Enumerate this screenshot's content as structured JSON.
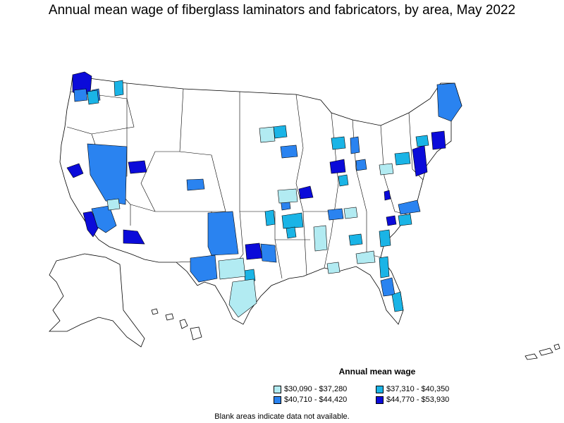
{
  "title": "Annual mean wage of fiberglass laminators and fabricators, by area, May 2022",
  "legend": {
    "title": "Annual mean wage",
    "items": [
      {
        "label": "$30,090 - $37,280",
        "color": "#b2ebf2"
      },
      {
        "label": "$37,310 - $40,350",
        "color": "#1ab4e6"
      },
      {
        "label": "$40,710 - $44,420",
        "color": "#2a83f0"
      },
      {
        "label": "$44,770 - $53,930",
        "color": "#0b0bd9"
      }
    ]
  },
  "note": "Blank areas indicate data not available."
}
